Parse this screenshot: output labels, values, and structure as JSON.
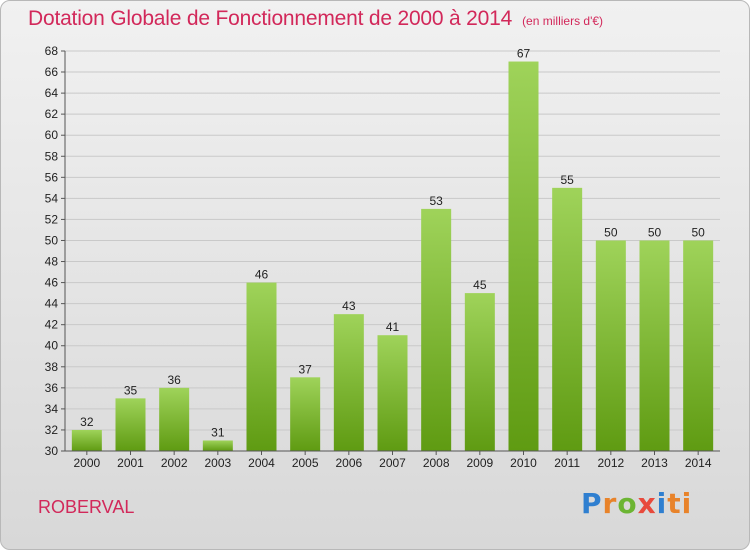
{
  "header": {
    "title": "Dotation Globale de Fonctionnement de 2000 à 2014",
    "subtitle": "(en milliers d'€)"
  },
  "footer": {
    "commune": "ROBERVAL",
    "logo_letters": [
      "P",
      "r",
      "o",
      "x",
      "i",
      "ti"
    ]
  },
  "colors": {
    "title": "#d2285a",
    "bar_top": "#9fd35a",
    "bar_bottom": "#5f9b12"
  },
  "chart_data": {
    "type": "bar",
    "title": "Dotation Globale de Fonctionnement de 2000 à 2014",
    "subtitle": "(en milliers d'€)",
    "xlabel": "",
    "ylabel": "",
    "ylim": [
      30,
      68
    ],
    "ytick_step": 2,
    "grid": true,
    "categories": [
      "2000",
      "2001",
      "2002",
      "2003",
      "2004",
      "2005",
      "2006",
      "2007",
      "2008",
      "2009",
      "2010",
      "2011",
      "2012",
      "2013",
      "2014"
    ],
    "values": [
      32,
      35,
      36,
      31,
      46,
      37,
      43,
      41,
      53,
      45,
      67,
      55,
      50,
      50,
      50
    ]
  }
}
